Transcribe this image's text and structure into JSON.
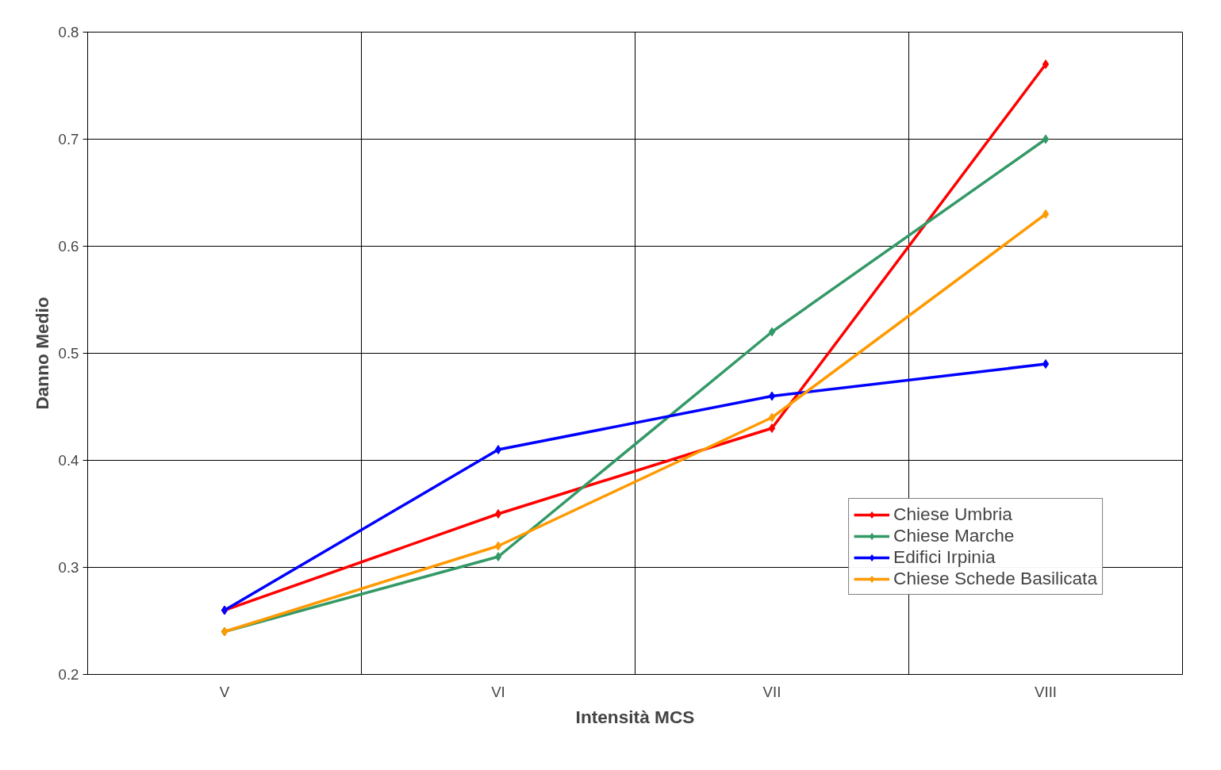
{
  "chart_data": {
    "type": "line",
    "xlabel": "Intensità MCS",
    "ylabel": "Danno Medio",
    "categories": [
      "V",
      "VI",
      "VII",
      "VIII"
    ],
    "series": [
      {
        "name": "Chiese Umbria",
        "color": "#ff0000",
        "values": [
          0.26,
          0.35,
          0.43,
          0.77
        ]
      },
      {
        "name": "Chiese Marche",
        "color": "#339966",
        "values": [
          0.24,
          0.31,
          0.52,
          0.7
        ]
      },
      {
        "name": "Edifici Irpinia",
        "color": "#0000ff",
        "values": [
          0.26,
          0.41,
          0.46,
          0.49
        ]
      },
      {
        "name": "Chiese Schede Basilicata",
        "color": "#ff9900",
        "values": [
          0.24,
          0.32,
          0.44,
          0.63
        ]
      }
    ],
    "ylim": [
      0.2,
      0.8
    ],
    "yticks": [
      0.2,
      0.3,
      0.4,
      0.5,
      0.6,
      0.7,
      0.8
    ],
    "grid": true,
    "legend": "bottom right",
    "marker": "diamond",
    "line_style": "solid"
  }
}
